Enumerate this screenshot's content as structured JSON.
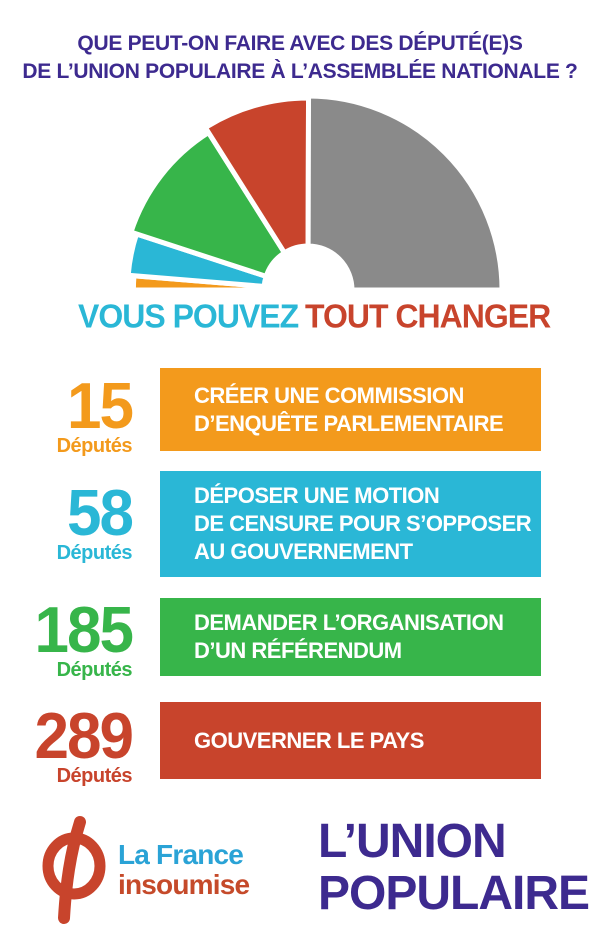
{
  "header": {
    "line1": "QUE PEUT-ON FAIRE AVEC DES DÉPUTÉ(E)S",
    "line2": "DE L’UNION POPULAIRE À L’ASSEMBLÉE NATIONALE ?"
  },
  "colors": {
    "orange": "#f39a1c",
    "blue": "#2ab7d6",
    "green": "#37b54a",
    "red": "#c8442c",
    "gray": "#8a8a8a",
    "purple": "#3d2a8f"
  },
  "hemicycle": {
    "total_seats": 577,
    "segments": [
      {
        "seats": 15,
        "color": "#f39a1c"
      },
      {
        "seats": 43,
        "color": "#2ab7d6"
      },
      {
        "seats": 127,
        "color": "#37b54a"
      },
      {
        "seats": 104,
        "color": "#c8442c"
      },
      {
        "seats": 288,
        "color": "#8a8a8a"
      }
    ]
  },
  "slogan": {
    "left": "VOUS POUVEZ",
    "right": "TOUT CHANGER"
  },
  "rows": [
    {
      "number": "15",
      "unit": "Députés",
      "line1": "CRÉER UNE COMMISSION",
      "line2": "D’ENQUÊTE PARLEMENTAIRE",
      "line3": "",
      "color": "#f39a1c"
    },
    {
      "number": "58",
      "unit": "Députés",
      "line1": "DÉPOSER UNE MOTION",
      "line2": "DE CENSURE POUR S’OPPOSER",
      "line3": "AU GOUVERNEMENT",
      "color": "#2ab7d6"
    },
    {
      "number": "185",
      "unit": "Députés",
      "line1": "DEMANDER L’ORGANISATION",
      "line2": "D’UN RÉFÉRENDUM",
      "line3": "",
      "color": "#37b54a"
    },
    {
      "number": "289",
      "unit": "Députés",
      "line1": "GOUVERNER LE PAYS",
      "line2": "",
      "line3": "",
      "color": "#c8442c"
    }
  ],
  "footer": {
    "fi_line1": "La France",
    "fi_line2": "insoumise",
    "up_line1": "L’UNION",
    "up_line2": "POPULAIRE"
  }
}
